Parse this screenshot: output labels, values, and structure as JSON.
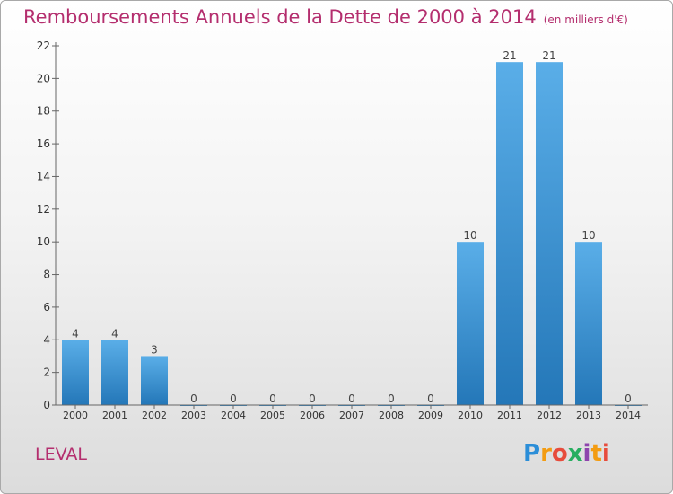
{
  "chart_data": {
    "type": "bar",
    "title": "Remboursements Annuels de la Dette de 2000 à 2014",
    "subtitle": "(en milliers d'€)",
    "categories": [
      "2000",
      "2001",
      "2002",
      "2003",
      "2004",
      "2005",
      "2006",
      "2007",
      "2008",
      "2009",
      "2010",
      "2011",
      "2012",
      "2013",
      "2014"
    ],
    "values": [
      4,
      4,
      3,
      0,
      0,
      0,
      0,
      0,
      0,
      0,
      10,
      21,
      21,
      10,
      0
    ],
    "y_ticks": [
      0,
      2,
      4,
      6,
      8,
      10,
      12,
      14,
      16,
      18,
      20,
      22
    ],
    "ylim": [
      0,
      22
    ],
    "xlabel": "",
    "ylabel": "",
    "grid": false,
    "bar_color": "#2f86cc"
  },
  "commune": "LEVAL",
  "logo": {
    "letters": [
      "P",
      "r",
      "o",
      "x",
      "i",
      "t",
      "i"
    ],
    "colors": [
      "#2b8ed8",
      "#f39c12",
      "#e74c3c",
      "#27ae60",
      "#8e44ad",
      "#f39c12",
      "#e74c3c"
    ]
  },
  "colors": {
    "accent": "#b42e6e",
    "bar": "#2f86cc"
  }
}
